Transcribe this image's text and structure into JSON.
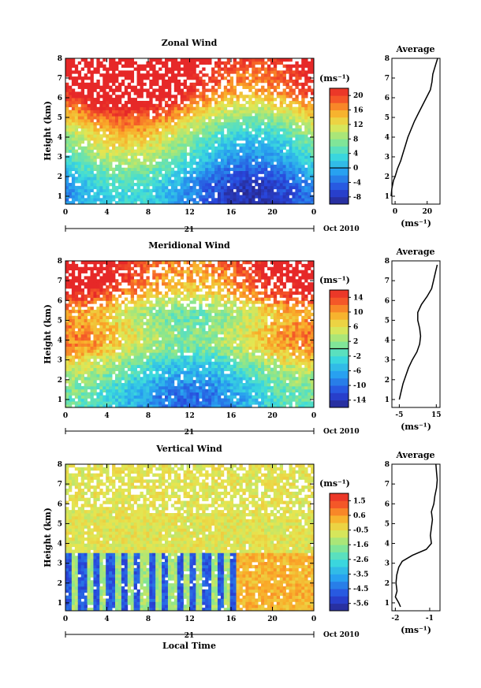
{
  "chart_data": [
    {
      "type": "heatmap",
      "title": "Zonal Wind",
      "ylabel": "Height (km)",
      "xticks": [
        "0",
        "4",
        "8",
        "12",
        "16",
        "20",
        "0"
      ],
      "xlim": [
        0,
        24
      ],
      "ylim": [
        0.6,
        8
      ],
      "yticks": [
        "1",
        "2",
        "3",
        "4",
        "5",
        "6",
        "7",
        "8"
      ],
      "date_day": "21",
      "date_label": "Oct 2010",
      "colorbar": {
        "unit": "(ms⁻¹)",
        "ticks": [
          "20",
          "16",
          "12",
          "8",
          "4",
          "0",
          "-4",
          "-8"
        ],
        "min": -10,
        "max": 22,
        "zero_line": 0
      },
      "profile": {
        "title": "Average",
        "xunit": "(ms⁻¹)",
        "xticks": [
          "0",
          "20"
        ],
        "xlim": [
          -2,
          28
        ],
        "heights": [
          1.0,
          1.4,
          1.8,
          2.0,
          2.4,
          2.8,
          3.2,
          3.6,
          4.0,
          4.4,
          4.8,
          5.2,
          5.6,
          6.0,
          6.4,
          6.8,
          7.2,
          7.6,
          8.0
        ],
        "values": [
          -2.5,
          -2.0,
          -1.0,
          0.0,
          1.5,
          3.5,
          5.0,
          6.5,
          8.0,
          10.0,
          12.0,
          14.5,
          17.0,
          19.5,
          22.0,
          23.0,
          23.5,
          25.0,
          26.5
        ]
      }
    },
    {
      "type": "heatmap",
      "title": "Meridional Wind",
      "ylabel": "Height (km)",
      "xticks": [
        "0",
        "4",
        "8",
        "12",
        "16",
        "20",
        "0"
      ],
      "xlim": [
        0,
        24
      ],
      "ylim": [
        0.6,
        8
      ],
      "yticks": [
        "1",
        "2",
        "3",
        "4",
        "5",
        "6",
        "7",
        "8"
      ],
      "date_day": "21",
      "date_label": "Oct 2010",
      "colorbar": {
        "unit": "(ms⁻¹)",
        "ticks": [
          "14",
          "10",
          "6",
          "2",
          "-2",
          "-6",
          "-10",
          "-14"
        ],
        "min": -16,
        "max": 16,
        "zero_line": 0
      },
      "profile": {
        "title": "Average",
        "xunit": "(ms⁻¹)",
        "xticks": [
          "-5",
          "15"
        ],
        "xlim": [
          -9,
          17
        ],
        "heights": [
          1.0,
          1.4,
          1.8,
          2.2,
          2.6,
          3.0,
          3.4,
          3.8,
          4.2,
          4.6,
          5.0,
          5.4,
          5.8,
          6.2,
          6.6,
          7.0,
          7.4,
          7.8
        ],
        "values": [
          -5.0,
          -4.0,
          -3.0,
          -1.5,
          0.0,
          2.0,
          4.5,
          6.0,
          6.5,
          6.0,
          5.0,
          5.0,
          7.0,
          10.0,
          12.5,
          13.5,
          14.5,
          15.5
        ]
      }
    },
    {
      "type": "heatmap",
      "title": "Vertical Wind",
      "ylabel": "Height (km)",
      "xlabel": "Local Time",
      "xticks": [
        "0",
        "4",
        "8",
        "12",
        "16",
        "20",
        "0"
      ],
      "xlim": [
        0,
        24
      ],
      "ylim": [
        0.6,
        8
      ],
      "yticks": [
        "1",
        "2",
        "3",
        "4",
        "5",
        "6",
        "7",
        "8"
      ],
      "date_day": "21",
      "date_label": "Oct 2010",
      "colorbar": {
        "unit": "(ms⁻¹)",
        "ticks": [
          "1.5",
          "0.6",
          "-0.5",
          "-1.6",
          "-2.6",
          "-3.5",
          "-4.5",
          "-5.6"
        ],
        "min": -6.0,
        "max": 2.0
      },
      "profile": {
        "title": "Average",
        "xunit": "(ms⁻¹)",
        "xticks": [
          "-2",
          "-1"
        ],
        "xlim": [
          -2.1,
          -0.7
        ],
        "heights": [
          0.8,
          1.0,
          1.3,
          1.6,
          2.0,
          2.4,
          2.8,
          3.1,
          3.4,
          3.7,
          4.0,
          4.4,
          4.8,
          5.2,
          5.6,
          6.0,
          6.4,
          6.8,
          7.2,
          7.6,
          8.0
        ],
        "values": [
          -1.85,
          -1.9,
          -2.0,
          -1.95,
          -1.98,
          -1.96,
          -1.9,
          -1.8,
          -1.5,
          -1.1,
          -0.95,
          -0.98,
          -0.95,
          -0.92,
          -0.95,
          -0.88,
          -0.85,
          -0.8,
          -0.78,
          -0.8,
          -0.82
        ]
      }
    }
  ]
}
